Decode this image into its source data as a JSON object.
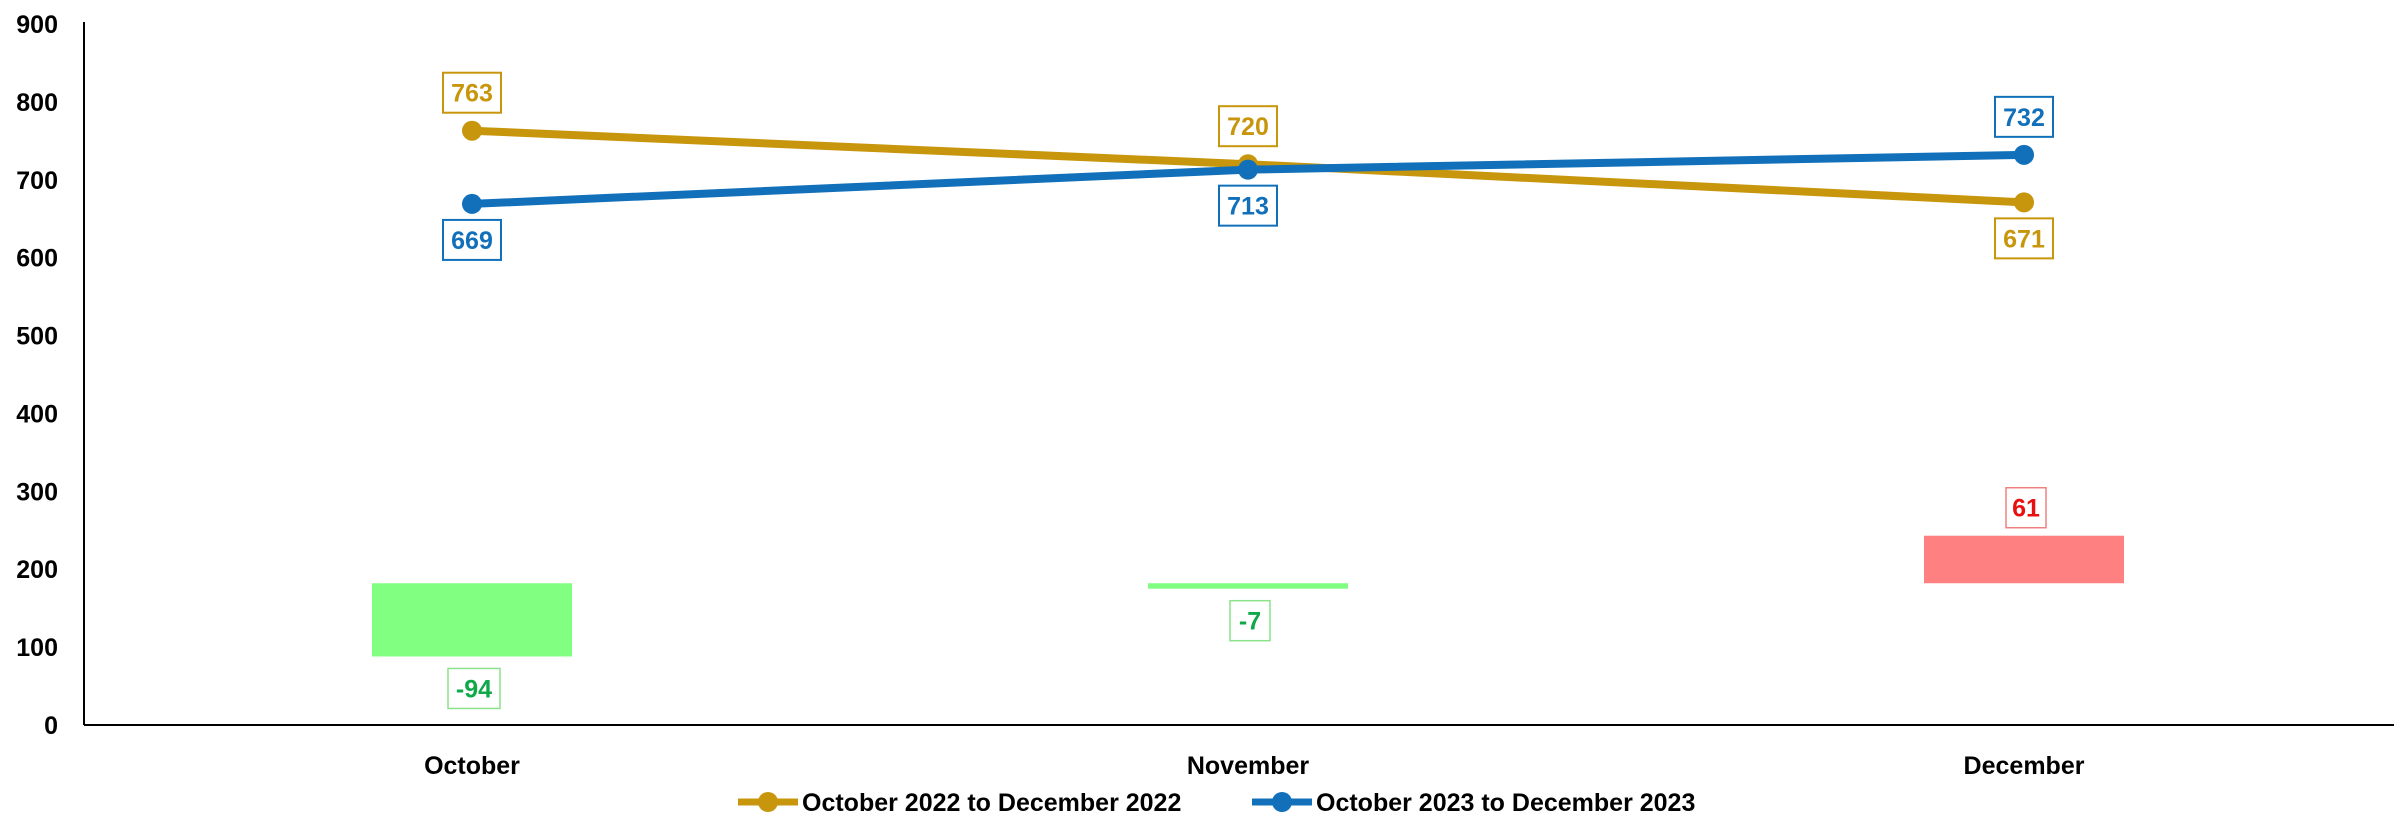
{
  "chart_data": {
    "type": "line",
    "categories": [
      "October",
      "November",
      "December"
    ],
    "ylim": [
      0,
      900
    ],
    "yticks": [
      0,
      100,
      200,
      300,
      400,
      500,
      600,
      700,
      800,
      900
    ],
    "grid": false,
    "legend_position": "bottom",
    "series": [
      {
        "name": "October 2022 to December 2022",
        "values": [
          763,
          720,
          671
        ],
        "color": "#C8960C",
        "label_position": [
          "above",
          "above",
          "below"
        ]
      },
      {
        "name": "October 2023 to December 2023",
        "values": [
          669,
          713,
          732
        ],
        "color": "#1170B9",
        "label_position": [
          "below",
          "below",
          "above"
        ]
      }
    ],
    "difference": {
      "values": [
        -94,
        -7,
        61
      ],
      "base": 182,
      "negative_fill": "#80FF80",
      "negative_label_color": "#11A84A",
      "negative_label_border": "#8CE28C",
      "positive_fill": "#FF8080",
      "positive_label_color": "#E81010",
      "positive_label_border": "#F08080"
    }
  }
}
